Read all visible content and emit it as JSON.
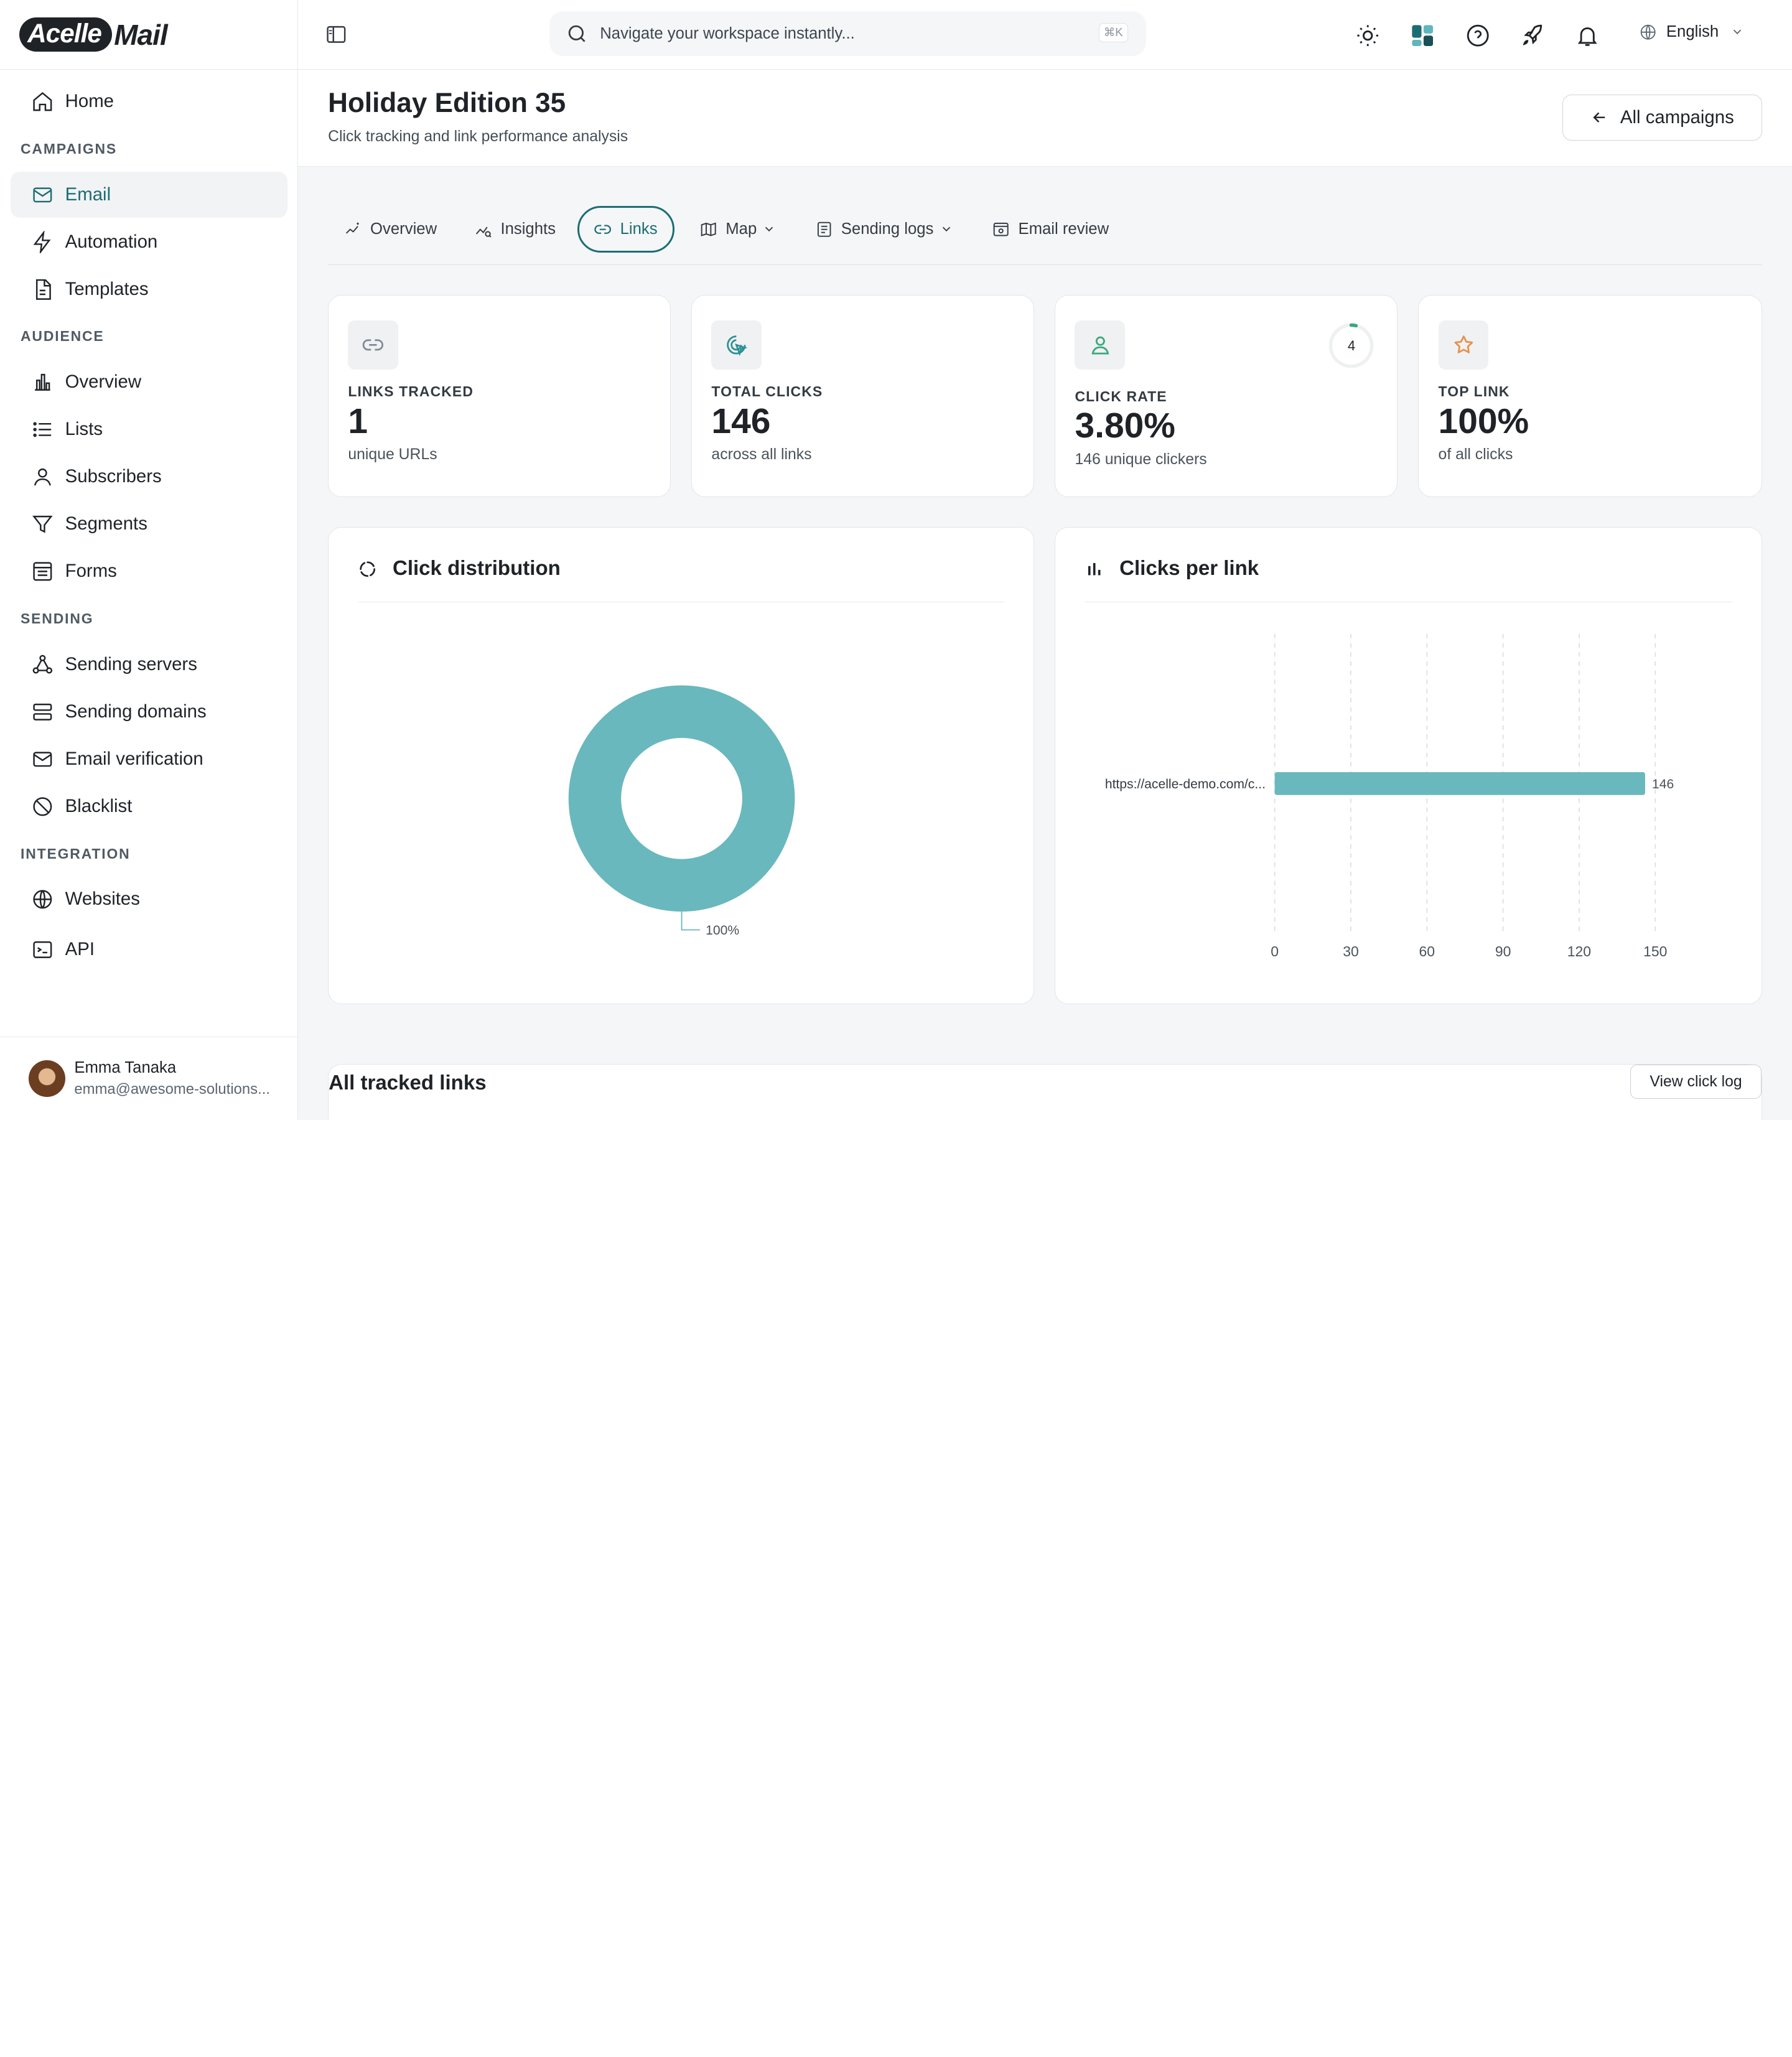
{
  "app": {
    "logo_part1": "Acelle",
    "logo_part2": "Mail"
  },
  "sidebar": {
    "home": "Home",
    "sections": {
      "campaigns": "CAMPAIGNS",
      "audience": "AUDIENCE",
      "sending": "SENDING",
      "integration": "INTEGRATION"
    },
    "items": {
      "email": "Email",
      "automation": "Automation",
      "templates": "Templates",
      "overview": "Overview",
      "lists": "Lists",
      "subscribers": "Subscribers",
      "segments": "Segments",
      "forms": "Forms",
      "sending_servers": "Sending servers",
      "sending_domains": "Sending domains",
      "email_verification": "Email verification",
      "blacklist": "Blacklist",
      "websites": "Websites",
      "api": "API"
    },
    "active": "email",
    "user": {
      "name": "Emma Tanaka",
      "email": "emma@awesome-solutions..."
    }
  },
  "topbar": {
    "search_placeholder": "Navigate your workspace instantly...",
    "search_shortcut": "⌘K",
    "language": "English"
  },
  "page": {
    "title": "Holiday Edition 35",
    "subtitle": "Click tracking and link performance analysis",
    "back_button": "All campaigns"
  },
  "tabs": [
    {
      "label": "Overview",
      "active": false
    },
    {
      "label": "Insights",
      "active": false
    },
    {
      "label": "Links",
      "active": true
    },
    {
      "label": "Map",
      "active": false
    },
    {
      "label": "Sending logs",
      "active": false
    },
    {
      "label": "Email review",
      "active": false
    }
  ],
  "stats": [
    {
      "label": "LINKS TRACKED",
      "value": "1",
      "note": "unique URLs"
    },
    {
      "label": "TOTAL CLICKS",
      "value": "146",
      "note": "across all links"
    },
    {
      "label": "CLICK RATE",
      "value": "3.80%",
      "note": "146 unique clickers",
      "ring_value": "4",
      "ring_fraction": 0.038
    },
    {
      "label": "TOP LINK",
      "value": "100%",
      "note": "of all clicks"
    }
  ],
  "colors": {
    "accent": "#1b6d73",
    "chart": "#69b8bd",
    "clicks_icon": "#2a8f95",
    "rate_icon": "#3aa87a",
    "top_link_icon": "#e8904a"
  },
  "panels": {
    "distribution_title": "Click distribution",
    "clicks_per_link_title": "Clicks per link"
  },
  "chart_data": [
    {
      "type": "pie",
      "title": "Click distribution",
      "categories": [
        "https://acelle-demo.com/c..."
      ],
      "values": [
        100
      ],
      "labels": [
        "100%"
      ]
    },
    {
      "type": "bar",
      "orientation": "horizontal",
      "title": "Clicks per link",
      "categories": [
        "https://acelle-demo.com/c..."
      ],
      "values": [
        146
      ],
      "xlim": [
        0,
        150
      ],
      "xticks": [
        "0",
        "30",
        "60",
        "90",
        "120",
        "150"
      ],
      "grid": true
    }
  ],
  "links_section": {
    "title": "All tracked links",
    "view_log_button": "View click log"
  }
}
